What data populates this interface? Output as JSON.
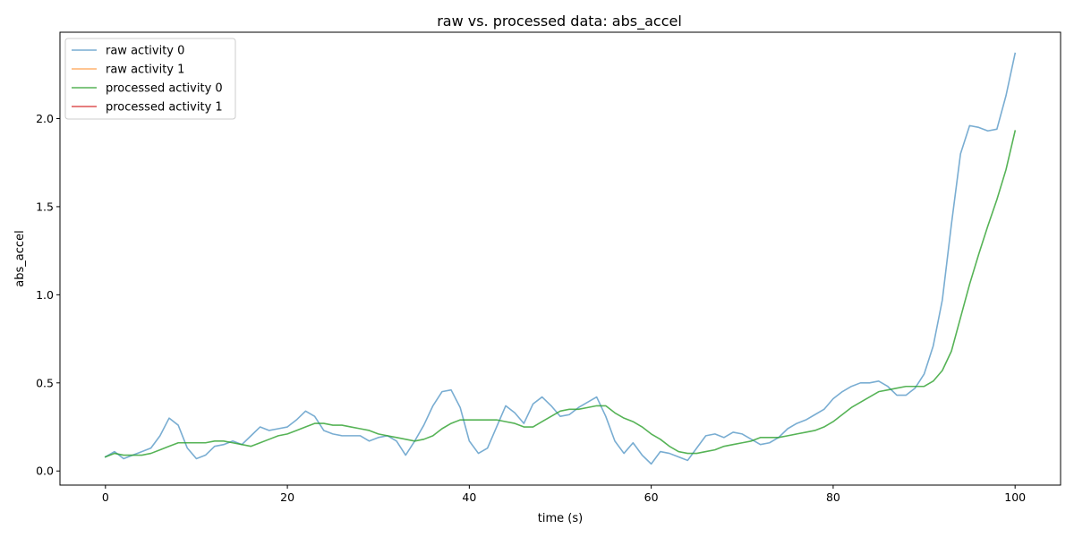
{
  "chart_data": {
    "type": "line",
    "title": "raw vs. processed data: abs_accel",
    "xlabel": "time (s)",
    "ylabel": "abs_accel",
    "xlim": [
      -5,
      105
    ],
    "ylim": [
      -0.08,
      2.49
    ],
    "xticks": [
      0,
      20,
      40,
      60,
      80,
      100
    ],
    "yticks": [
      0.0,
      0.5,
      1.0,
      1.5,
      2.0
    ],
    "xtick_labels": [
      "0",
      "20",
      "40",
      "60",
      "80",
      "100"
    ],
    "ytick_labels": [
      "0.0",
      "0.5",
      "1.0",
      "1.5",
      "2.0"
    ],
    "grid": false,
    "legend_position": "top-left",
    "series": [
      {
        "name": "raw activity 0",
        "color": "#1f77b4",
        "opacity": 0.6,
        "x": [
          0,
          1,
          2,
          3,
          4,
          5,
          6,
          7,
          8,
          9,
          10,
          11,
          12,
          13,
          14,
          15,
          16,
          17,
          18,
          19,
          20,
          21,
          22,
          23,
          24,
          25,
          26,
          27,
          28,
          29,
          30,
          31,
          32,
          33,
          34,
          35,
          36,
          37,
          38,
          39,
          40,
          41,
          42,
          43,
          44,
          45,
          46,
          47,
          48,
          49,
          50,
          51,
          52,
          53,
          54,
          55,
          56,
          57,
          58,
          59,
          60,
          61,
          62,
          63,
          64,
          65,
          66,
          67,
          68,
          69,
          70,
          71,
          72,
          73,
          74,
          75,
          76,
          77,
          78,
          79,
          80,
          81,
          82,
          83,
          84,
          85,
          86,
          87,
          88,
          89,
          90,
          91,
          92,
          93,
          94,
          95,
          96,
          97,
          98,
          99,
          100
        ],
        "values": [
          0.08,
          0.11,
          0.07,
          0.09,
          0.11,
          0.13,
          0.2,
          0.3,
          0.26,
          0.13,
          0.07,
          0.09,
          0.14,
          0.15,
          0.17,
          0.15,
          0.2,
          0.25,
          0.23,
          0.24,
          0.25,
          0.29,
          0.34,
          0.31,
          0.23,
          0.21,
          0.2,
          0.2,
          0.2,
          0.17,
          0.19,
          0.2,
          0.17,
          0.09,
          0.17,
          0.26,
          0.37,
          0.45,
          0.46,
          0.36,
          0.17,
          0.1,
          0.13,
          0.25,
          0.37,
          0.33,
          0.27,
          0.38,
          0.42,
          0.37,
          0.31,
          0.32,
          0.36,
          0.39,
          0.42,
          0.31,
          0.17,
          0.1,
          0.16,
          0.09,
          0.04,
          0.11,
          0.1,
          0.08,
          0.06,
          0.13,
          0.2,
          0.21,
          0.19,
          0.22,
          0.21,
          0.18,
          0.15,
          0.16,
          0.19,
          0.24,
          0.27,
          0.29,
          0.32,
          0.35,
          0.41,
          0.45,
          0.48,
          0.5,
          0.5,
          0.51,
          0.48,
          0.43,
          0.43,
          0.47,
          0.55,
          0.71,
          0.97,
          1.4,
          1.8,
          1.96,
          1.95,
          1.93,
          1.94,
          2.13,
          2.37
        ]
      },
      {
        "name": "raw activity 1",
        "color": "#ff7f0e",
        "opacity": 0.6,
        "x": [],
        "values": []
      },
      {
        "name": "processed activity 0",
        "color": "#2ca02c",
        "opacity": 0.8,
        "x": [
          0,
          1,
          2,
          3,
          4,
          5,
          6,
          7,
          8,
          9,
          10,
          11,
          12,
          13,
          14,
          15,
          16,
          17,
          18,
          19,
          20,
          21,
          22,
          23,
          24,
          25,
          26,
          27,
          28,
          29,
          30,
          31,
          32,
          33,
          34,
          35,
          36,
          37,
          38,
          39,
          40,
          41,
          42,
          43,
          44,
          45,
          46,
          47,
          48,
          49,
          50,
          51,
          52,
          53,
          54,
          55,
          56,
          57,
          58,
          59,
          60,
          61,
          62,
          63,
          64,
          65,
          66,
          67,
          68,
          69,
          70,
          71,
          72,
          73,
          74,
          75,
          76,
          77,
          78,
          79,
          80,
          81,
          82,
          83,
          84,
          85,
          86,
          87,
          88,
          89,
          90,
          91,
          92,
          93,
          94,
          95,
          96,
          97,
          98,
          99,
          100
        ],
        "values": [
          0.08,
          0.1,
          0.09,
          0.09,
          0.09,
          0.1,
          0.12,
          0.14,
          0.16,
          0.16,
          0.16,
          0.16,
          0.17,
          0.17,
          0.16,
          0.15,
          0.14,
          0.16,
          0.18,
          0.2,
          0.21,
          0.23,
          0.25,
          0.27,
          0.27,
          0.26,
          0.26,
          0.25,
          0.24,
          0.23,
          0.21,
          0.2,
          0.19,
          0.18,
          0.17,
          0.18,
          0.2,
          0.24,
          0.27,
          0.29,
          0.29,
          0.29,
          0.29,
          0.29,
          0.28,
          0.27,
          0.25,
          0.25,
          0.28,
          0.31,
          0.34,
          0.35,
          0.35,
          0.36,
          0.37,
          0.37,
          0.33,
          0.3,
          0.28,
          0.25,
          0.21,
          0.18,
          0.14,
          0.11,
          0.1,
          0.1,
          0.11,
          0.12,
          0.14,
          0.15,
          0.16,
          0.17,
          0.19,
          0.19,
          0.19,
          0.2,
          0.21,
          0.22,
          0.23,
          0.25,
          0.28,
          0.32,
          0.36,
          0.39,
          0.42,
          0.45,
          0.46,
          0.47,
          0.48,
          0.48,
          0.48,
          0.51,
          0.57,
          0.68,
          0.87,
          1.06,
          1.23,
          1.39,
          1.54,
          1.71,
          1.93
        ]
      },
      {
        "name": "processed activity 1",
        "color": "#d62728",
        "opacity": 0.8,
        "x": [],
        "values": []
      }
    ]
  }
}
